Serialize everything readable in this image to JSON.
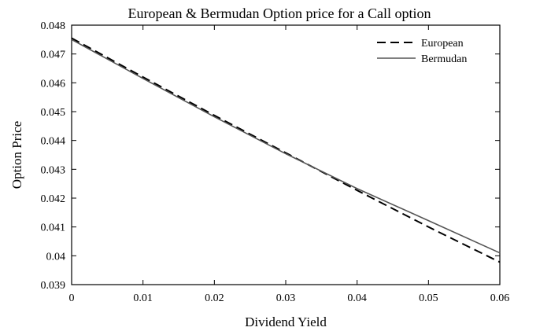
{
  "chart_data": {
    "type": "line",
    "title": "European & Bermudan Option price for a Call option",
    "xlabel": "Dividend Yield",
    "ylabel": "Option Price",
    "xlim": [
      0,
      0.06
    ],
    "ylim": [
      0.039,
      0.048
    ],
    "x_ticks": [
      "0",
      "0.01",
      "0.02",
      "0.03",
      "0.04",
      "0.05",
      "0.06"
    ],
    "y_ticks": [
      "0.039",
      "0.04",
      "0.041",
      "0.042",
      "0.043",
      "0.044",
      "0.045",
      "0.046",
      "0.047",
      "0.048"
    ],
    "grid": false,
    "legend_position": "top-right",
    "x": [
      0,
      0.01,
      0.02,
      0.03,
      0.04,
      0.05,
      0.06
    ],
    "series": [
      {
        "name": "European",
        "style": "dashed",
        "color": "#000000",
        "values": [
          0.04755,
          0.0462,
          0.04487,
          0.04357,
          0.04227,
          0.041,
          0.03978
        ]
      },
      {
        "name": "Bermudan",
        "style": "solid",
        "color": "#555555",
        "values": [
          0.0475,
          0.04615,
          0.04482,
          0.04354,
          0.04233,
          0.04122,
          0.0401
        ]
      }
    ]
  }
}
